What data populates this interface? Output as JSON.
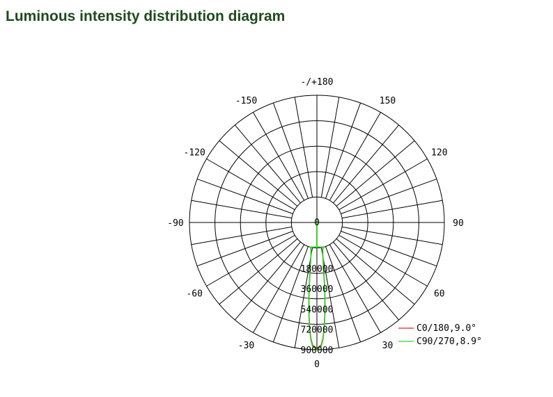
{
  "page": {
    "title": "Luminous intensity distribution diagram"
  },
  "chart_data": {
    "type": "polar",
    "angle_labels": [
      {
        "angle": 180,
        "text": "-/+180"
      },
      {
        "angle": -150,
        "text": "-150"
      },
      {
        "angle": 150,
        "text": "150"
      },
      {
        "angle": -120,
        "text": "-120"
      },
      {
        "angle": 120,
        "text": "120"
      },
      {
        "angle": -90,
        "text": "-90"
      },
      {
        "angle": 90,
        "text": "90"
      },
      {
        "angle": -60,
        "text": "-60"
      },
      {
        "angle": 60,
        "text": "60"
      },
      {
        "angle": -30,
        "text": "-30"
      },
      {
        "angle": 30,
        "text": "30"
      },
      {
        "angle": 0,
        "text": "0"
      }
    ],
    "radial_ticks": [
      180000,
      360000,
      540000,
      720000,
      900000
    ],
    "radial_tick_labels": [
      "180000",
      "360000",
      "540000",
      "720000",
      "900000"
    ],
    "center_label": "0",
    "radial_max": 900000,
    "grid": true,
    "legend_position": "bottom-right",
    "series": [
      {
        "name": "C0/180,9.0°",
        "color": "#e02020",
        "points": [
          [
            0,
            890000
          ],
          [
            2,
            860000
          ],
          [
            3,
            800000
          ],
          [
            4,
            700000
          ],
          [
            5,
            580000
          ],
          [
            6,
            450000
          ],
          [
            7,
            320000
          ],
          [
            8,
            200000
          ],
          [
            10,
            80000
          ],
          [
            12,
            20000
          ],
          [
            15,
            0
          ]
        ]
      },
      {
        "name": "C90/270,8.9°",
        "color": "#22dd22",
        "points": [
          [
            0,
            900000
          ],
          [
            2,
            870000
          ],
          [
            3,
            810000
          ],
          [
            4,
            710000
          ],
          [
            5,
            590000
          ],
          [
            6,
            460000
          ],
          [
            7,
            330000
          ],
          [
            8,
            210000
          ],
          [
            10,
            85000
          ],
          [
            12,
            20000
          ],
          [
            15,
            0
          ]
        ]
      }
    ]
  }
}
